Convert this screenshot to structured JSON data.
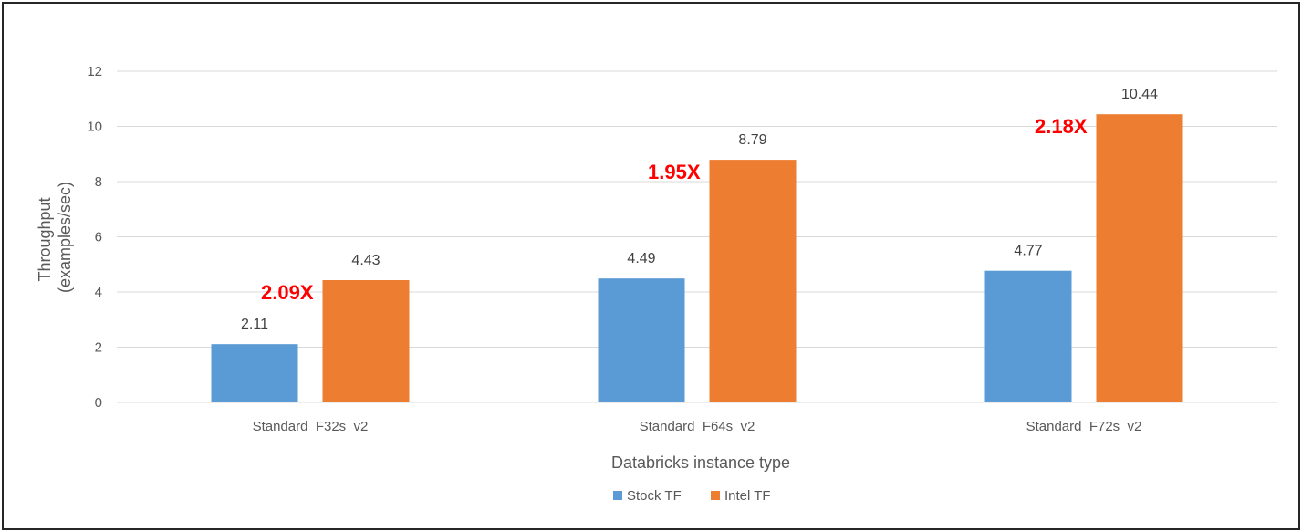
{
  "chart_data": {
    "type": "bar",
    "title": "",
    "xlabel": "Databricks instance type",
    "ylabel_lines": [
      "Throughput",
      "(examples/sec)"
    ],
    "ylim": [
      0,
      12
    ],
    "yticks": [
      0,
      2,
      4,
      6,
      8,
      10,
      12
    ],
    "grid": true,
    "legend_position": "bottom",
    "categories": [
      "Standard_F32s_v2",
      "Standard_F64s_v2",
      "Standard_F72s_v2"
    ],
    "series": [
      {
        "name": "Stock TF",
        "color": "#5b9bd5",
        "values": [
          2.11,
          4.49,
          4.77
        ]
      },
      {
        "name": "Intel TF",
        "color": "#ed7d31",
        "values": [
          4.43,
          8.79,
          10.44
        ]
      }
    ],
    "annotations": [
      "2.09X",
      "1.95X",
      "2.18X"
    ],
    "annotation_color": "#ff0000"
  }
}
